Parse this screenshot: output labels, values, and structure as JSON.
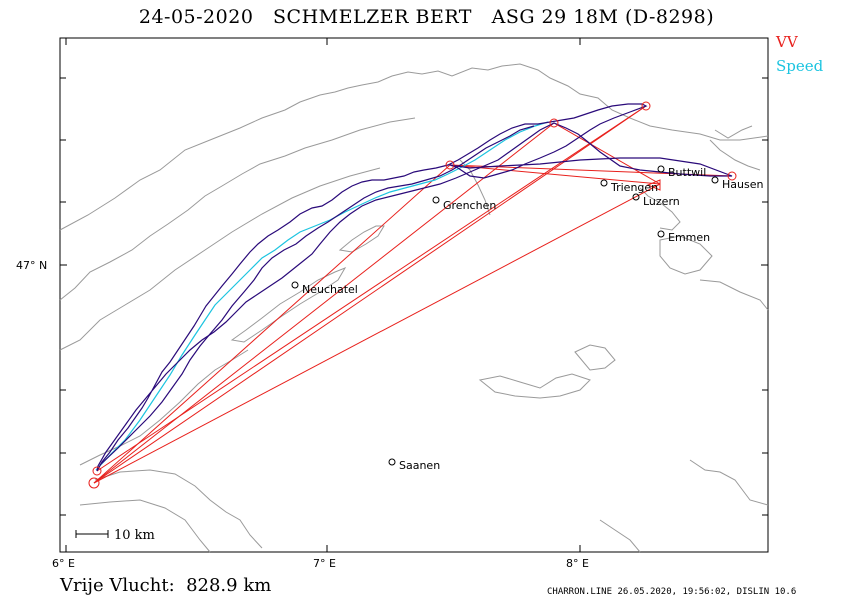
{
  "header": {
    "title": "24-05-2020   SCHMELZER BERT   ASG 29 18M (D-8298)"
  },
  "legend": {
    "vv_label": "VV",
    "speed_label": "Speed",
    "vv_color": "#e8201c",
    "speed_color": "#1cc4e0",
    "track_color": "#2a0a7a"
  },
  "axes": {
    "x_ticks": [
      "6° E",
      "7° E",
      "8° E"
    ],
    "y_ticks": [
      "47° N"
    ]
  },
  "scale_bar": {
    "label": "10 km"
  },
  "cities": [
    {
      "name": "Buttwil"
    },
    {
      "name": "Hausen"
    },
    {
      "name": "Triengen"
    },
    {
      "name": "Luzern"
    },
    {
      "name": "Grenchen"
    },
    {
      "name": "Emmen"
    },
    {
      "name": "Neuchatel"
    },
    {
      "name": "Saanen"
    }
  ],
  "footer": {
    "distance_text": "Vrije Vlucht:  828.9 km",
    "credit": "CHARRON.LINE 26.05.2020, 19:56:02, DISLIN 10.6"
  }
}
